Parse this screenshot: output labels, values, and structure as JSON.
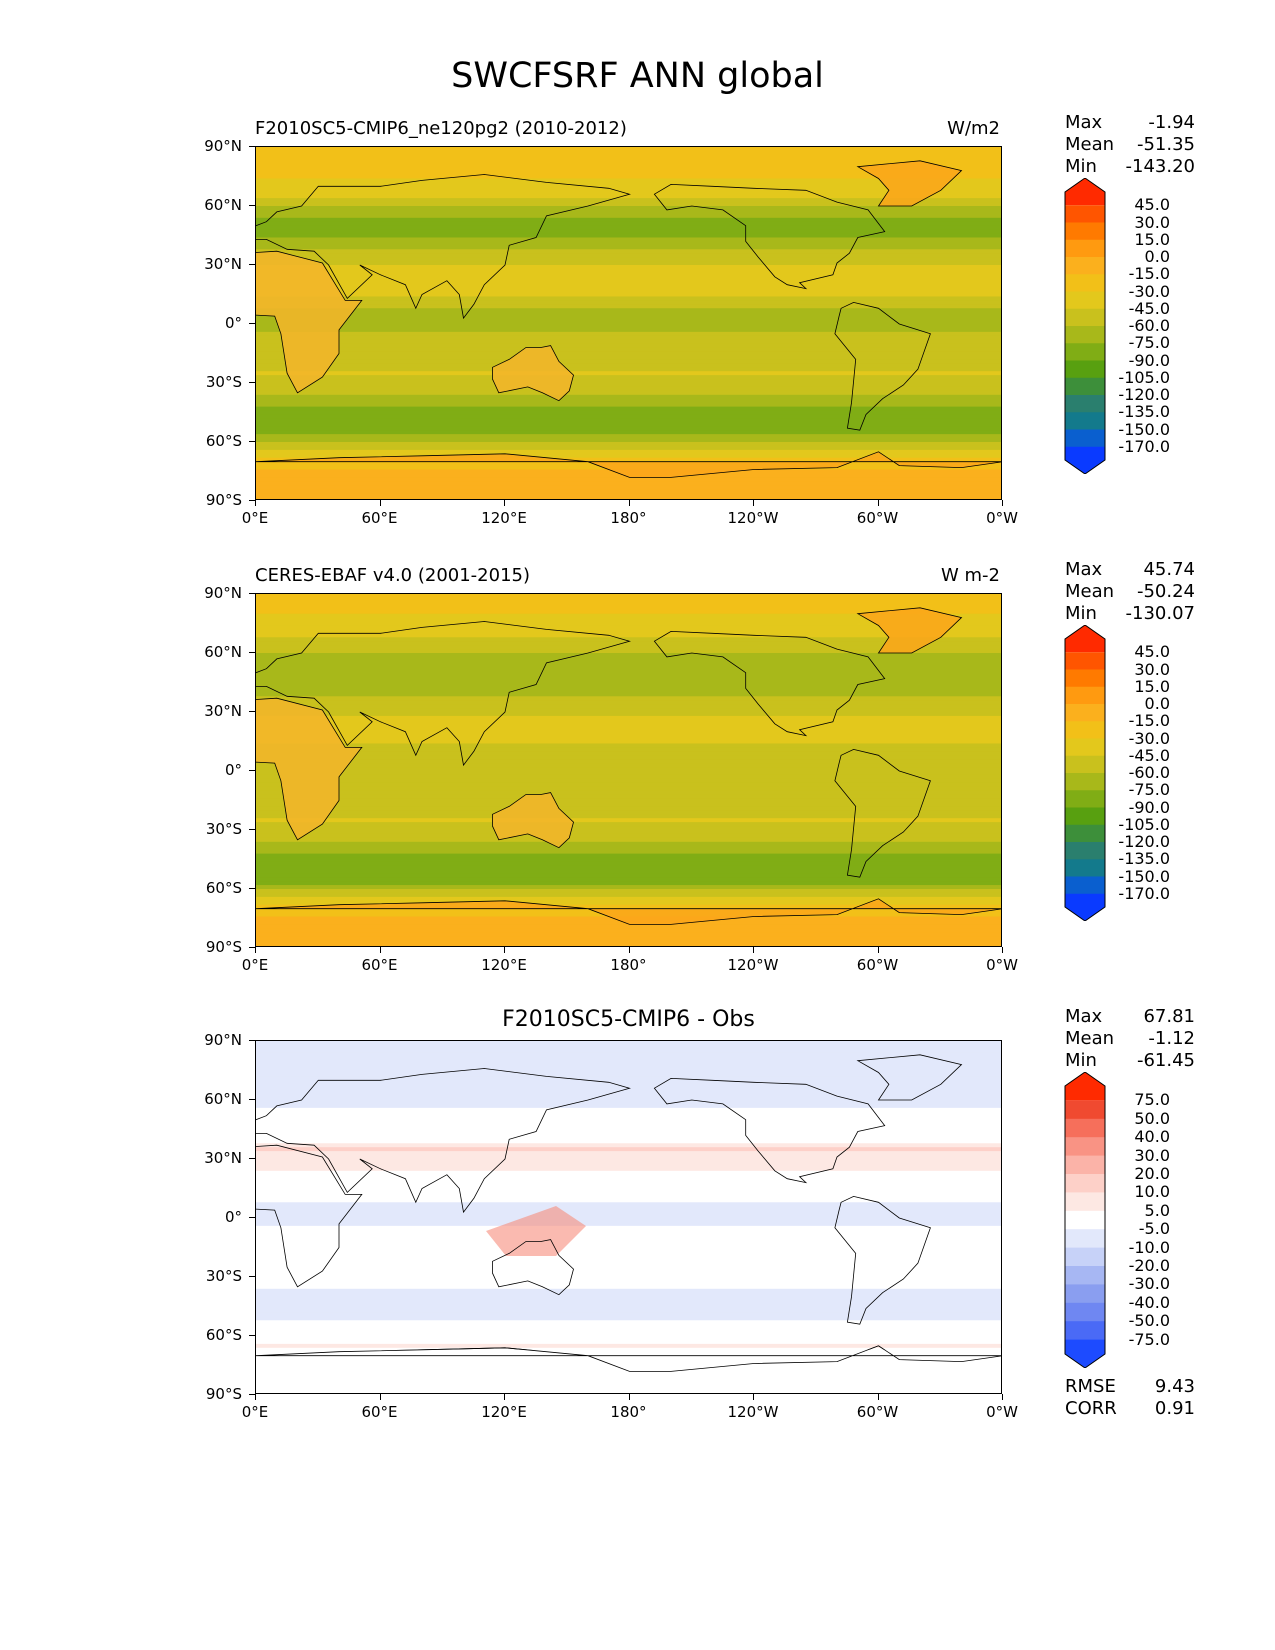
{
  "title": "SWCFSRF ANN global",
  "axes": {
    "y_ticks": [
      "90°N",
      "60°N",
      "30°N",
      "0°",
      "30°S",
      "60°S",
      "90°S"
    ],
    "x_ticks": [
      "0°E",
      "60°E",
      "120°E",
      "180°",
      "120°W",
      "60°W",
      "0°W"
    ]
  },
  "panels": [
    {
      "left_title": "F2010SC5-CMIP6_ne120pg2 (2010-2012)",
      "right_title": "W/m2",
      "center_title": "",
      "stats": [
        {
          "label": "Max",
          "value": "-1.94"
        },
        {
          "label": "Mean",
          "value": "-51.35"
        },
        {
          "label": "Min",
          "value": "-143.20"
        }
      ],
      "colorbar_labels": [
        "45.0",
        "30.0",
        "15.0",
        "0.0",
        "-15.0",
        "-30.0",
        "-45.0",
        "-60.0",
        "-75.0",
        "-90.0",
        "-105.0",
        "-120.0",
        "-135.0",
        "-150.0",
        "-170.0"
      ],
      "colormap": "model"
    },
    {
      "left_title": "CERES-EBAF v4.0 (2001-2015)",
      "right_title": "W m-2",
      "center_title": "",
      "stats": [
        {
          "label": "Max",
          "value": "45.74"
        },
        {
          "label": "Mean",
          "value": "-50.24"
        },
        {
          "label": "Min",
          "value": "-130.07"
        }
      ],
      "colorbar_labels": [
        "45.0",
        "30.0",
        "15.0",
        "0.0",
        "-15.0",
        "-30.0",
        "-45.0",
        "-60.0",
        "-75.0",
        "-90.0",
        "-105.0",
        "-120.0",
        "-135.0",
        "-150.0",
        "-170.0"
      ],
      "colormap": "model"
    },
    {
      "left_title": "",
      "right_title": "",
      "center_title": "F2010SC5-CMIP6 - Obs",
      "stats": [
        {
          "label": "Max",
          "value": "67.81"
        },
        {
          "label": "Mean",
          "value": "-1.12"
        },
        {
          "label": "Min",
          "value": "-61.45"
        }
      ],
      "colorbar_labels": [
        "75.0",
        "50.0",
        "40.0",
        "30.0",
        "20.0",
        "10.0",
        "5.0",
        "-5.0",
        "-10.0",
        "-20.0",
        "-30.0",
        "-40.0",
        "-50.0",
        "-75.0"
      ],
      "colormap": "diff",
      "extra_stats": [
        {
          "label": "RMSE",
          "value": "9.43"
        },
        {
          "label": "CORR",
          "value": "0.91"
        }
      ]
    }
  ],
  "colormaps": {
    "model": [
      "#ff2a00",
      "#ff5500",
      "#ff7a00",
      "#ff9a10",
      "#fbb01d",
      "#f2c018",
      "#e3c81c",
      "#c9c11d",
      "#a8b81a",
      "#80ad15",
      "#58a010",
      "#3d8f3a",
      "#2a7f6e",
      "#137a8c",
      "#0a5fcf",
      "#0a3aff"
    ],
    "diff": [
      "#ff2a00",
      "#f04a30",
      "#f66f5b",
      "#f99384",
      "#fbb3a8",
      "#fdd0c8",
      "#fde8e3",
      "#ffffff",
      "#e2e8fb",
      "#c7d2f8",
      "#a7b7f3",
      "#8a9ef0",
      "#6f87f2",
      "#4a6af6",
      "#1d4bff"
    ]
  },
  "chart_data": [
    {
      "type": "heatmap",
      "title": "F2010SC5-CMIP6_ne120pg2 (2010-2012)",
      "units": "W/m2",
      "xlim": [
        0,
        360
      ],
      "ylim": [
        -90,
        90
      ],
      "stats": {
        "max": -1.94,
        "mean": -51.35,
        "min": -143.2
      },
      "levels": [
        -170,
        -150,
        -135,
        -120,
        -105,
        -90,
        -75,
        -60,
        -45,
        -30,
        -15,
        0,
        15,
        30,
        45
      ],
      "zonal_profile": {
        "lat": [
          -90,
          -75,
          -65,
          -55,
          -45,
          -35,
          -25,
          -15,
          -5,
          5,
          15,
          25,
          35,
          45,
          55,
          65,
          75,
          90
        ],
        "value": [
          -15,
          -15,
          -40,
          -80,
          -85,
          -60,
          -45,
          -50,
          -60,
          -65,
          -45,
          -35,
          -55,
          -80,
          -75,
          -45,
          -30,
          -25
        ]
      }
    },
    {
      "type": "heatmap",
      "title": "CERES-EBAF v4.0 (2001-2015)",
      "units": "W m-2",
      "xlim": [
        0,
        360
      ],
      "ylim": [
        -90,
        90
      ],
      "stats": {
        "max": 45.74,
        "mean": -50.24,
        "min": -130.07
      },
      "levels": [
        -170,
        -150,
        -135,
        -120,
        -105,
        -90,
        -75,
        -60,
        -45,
        -30,
        -15,
        0,
        15,
        30,
        45
      ],
      "zonal_profile": {
        "lat": [
          -90,
          -75,
          -65,
          -55,
          -45,
          -35,
          -25,
          -15,
          -5,
          5,
          15,
          25,
          35,
          45,
          55,
          65,
          75,
          90
        ],
        "value": [
          -15,
          -15,
          -40,
          -85,
          -85,
          -55,
          -45,
          -50,
          -55,
          -60,
          -45,
          -40,
          -55,
          -75,
          -75,
          -50,
          -35,
          -20
        ]
      }
    },
    {
      "type": "heatmap",
      "title": "F2010SC5-CMIP6 - Obs",
      "xlim": [
        0,
        360
      ],
      "ylim": [
        -90,
        90
      ],
      "stats": {
        "max": 67.81,
        "mean": -1.12,
        "min": -61.45,
        "rmse": 9.43,
        "corr": 0.91
      },
      "levels": [
        -75,
        -50,
        -40,
        -30,
        -20,
        -10,
        -5,
        5,
        10,
        20,
        30,
        40,
        50,
        75
      ],
      "zonal_profile": {
        "lat": [
          -90,
          -75,
          -65,
          -55,
          -45,
          -35,
          -25,
          -15,
          -5,
          5,
          15,
          25,
          35,
          45,
          55,
          65,
          75,
          90
        ],
        "value": [
          0,
          0,
          5,
          -2,
          -10,
          -5,
          0,
          -3,
          -5,
          -8,
          0,
          5,
          10,
          -5,
          -5,
          -8,
          -10,
          -5
        ]
      }
    }
  ]
}
